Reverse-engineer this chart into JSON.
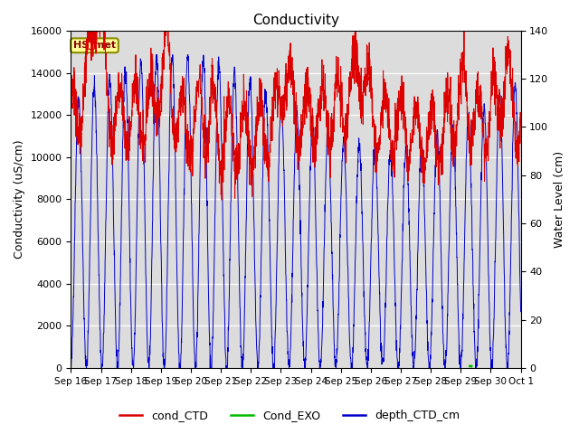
{
  "title": "Conductivity",
  "ylabel_left": "Conductivity (uS/cm)",
  "ylabel_right": "Water Level (cm)",
  "ylim_left": [
    0,
    16000
  ],
  "ylim_right": [
    0,
    140
  ],
  "yticks_left": [
    0,
    2000,
    4000,
    6000,
    8000,
    10000,
    12000,
    14000,
    16000
  ],
  "yticks_right": [
    0,
    20,
    40,
    60,
    80,
    100,
    120,
    140
  ],
  "bg_color": "#dcdcdc",
  "annotation_text": "HS_met",
  "annotation_bg": "#ffff99",
  "annotation_border": "#8b8b00",
  "legend_entries": [
    "cond_CTD",
    "Cond_EXO",
    "depth_CTD_cm"
  ],
  "legend_colors": [
    "#dd0000",
    "#00bb00",
    "#0000cc"
  ],
  "line_colors": {
    "cond_CTD": "#dd0000",
    "Cond_EXO": "#00bb00",
    "depth_CTD_cm": "#0000cc"
  },
  "xticklabels": [
    "Sep 16",
    "Sep 17",
    "Sep 18",
    "Sep 19",
    "Sep 20",
    "Sep 21",
    "Sep 22",
    "Sep 23",
    "Sep 24",
    "Sep 25",
    "Sep 26",
    "Sep 27",
    "Sep 28",
    "Sep 29",
    "Sep 30",
    "Oct 1"
  ],
  "num_days": 15,
  "seed": 42
}
